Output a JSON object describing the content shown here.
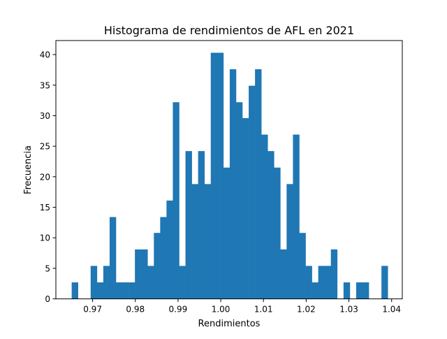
{
  "chart_data": {
    "type": "bar",
    "title": "Histograma de rendimientos de AFL en 2021",
    "xlabel": "Rendimientos",
    "ylabel": "Frecuencia",
    "xlim": [
      0.9614,
      1.0425
    ],
    "ylim": [
      0,
      42.3
    ],
    "xticks": [
      0.97,
      0.98,
      0.99,
      1.0,
      1.01,
      1.02,
      1.03,
      1.04
    ],
    "xtick_labels": [
      "0.97",
      "0.98",
      "0.99",
      "1.00",
      "1.01",
      "1.02",
      "1.03",
      "1.04"
    ],
    "yticks": [
      0,
      5,
      10,
      15,
      20,
      25,
      30,
      35,
      40
    ],
    "ytick_labels": [
      "0",
      "5",
      "10",
      "15",
      "20",
      "25",
      "30",
      "35",
      "40"
    ],
    "bin_start": 0.9651,
    "bin_width": 0.00148,
    "bins": 50,
    "values": [
      2.7,
      0,
      0,
      5.4,
      2.7,
      5.4,
      13.4,
      2.7,
      2.7,
      2.7,
      8.1,
      8.1,
      5.4,
      10.8,
      13.4,
      16.1,
      32.2,
      5.4,
      24.2,
      18.8,
      24.2,
      18.8,
      40.3,
      40.3,
      21.5,
      37.6,
      32.2,
      29.6,
      34.9,
      37.6,
      26.9,
      24.2,
      21.5,
      8.1,
      18.8,
      26.9,
      10.8,
      5.4,
      2.7,
      5.4,
      5.4,
      8.1,
      0,
      2.7,
      0,
      2.7,
      2.7,
      0,
      0,
      5.4
    ],
    "color": "#1f77b4",
    "grid": false,
    "legend": "none"
  }
}
